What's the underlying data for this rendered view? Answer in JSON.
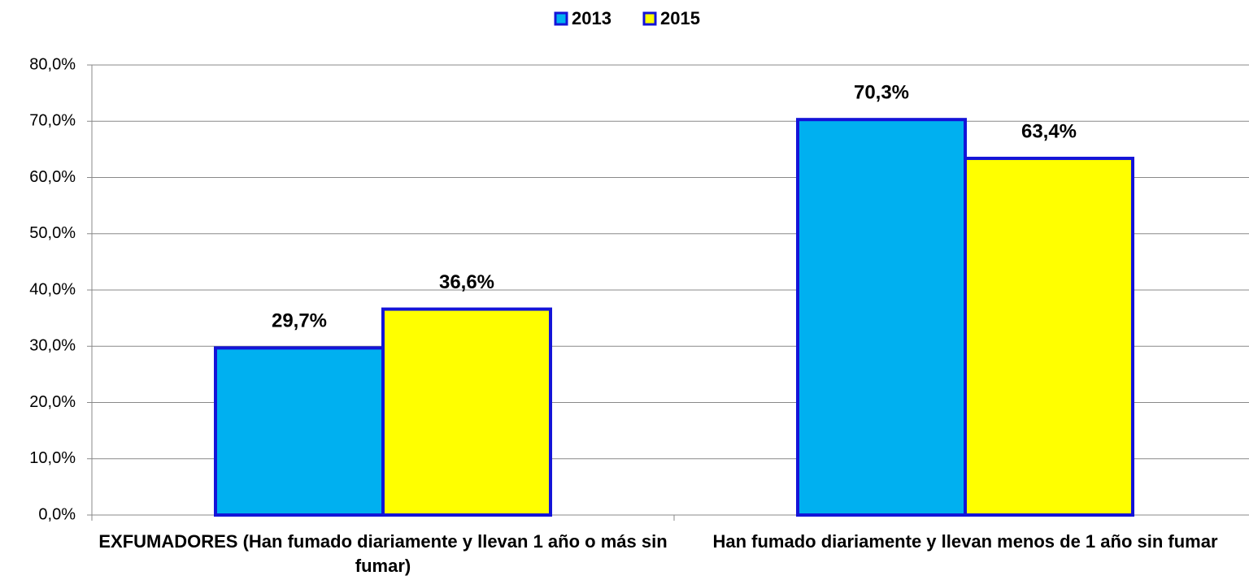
{
  "chart_data": {
    "type": "bar",
    "categories": [
      "EXFUMADORES (Han fumado diariamente y llevan 1 año o más sin fumar)",
      "Han fumado diariamente y llevan menos de 1 año sin fumar"
    ],
    "series": [
      {
        "name": "2013",
        "color": "#00b0f0",
        "values": [
          29.7,
          70.3
        ],
        "value_labels": [
          "29,7%",
          "70,3%"
        ]
      },
      {
        "name": "2015",
        "color": "#ffff00",
        "values": [
          36.6,
          63.4
        ],
        "value_labels": [
          "36,6%",
          "63,4%"
        ]
      }
    ],
    "ylim": [
      0,
      80
    ],
    "yticks": [
      {
        "value": 0,
        "label": "0,0%"
      },
      {
        "value": 10,
        "label": "10,0%"
      },
      {
        "value": 20,
        "label": "20,0%"
      },
      {
        "value": 30,
        "label": "30,0%"
      },
      {
        "value": 40,
        "label": "40,0%"
      },
      {
        "value": 50,
        "label": "50,0%"
      },
      {
        "value": 60,
        "label": "60,0%"
      },
      {
        "value": 70,
        "label": "70,0%"
      },
      {
        "value": 80,
        "label": "80,0%"
      }
    ],
    "grid": true,
    "legend": "top"
  }
}
